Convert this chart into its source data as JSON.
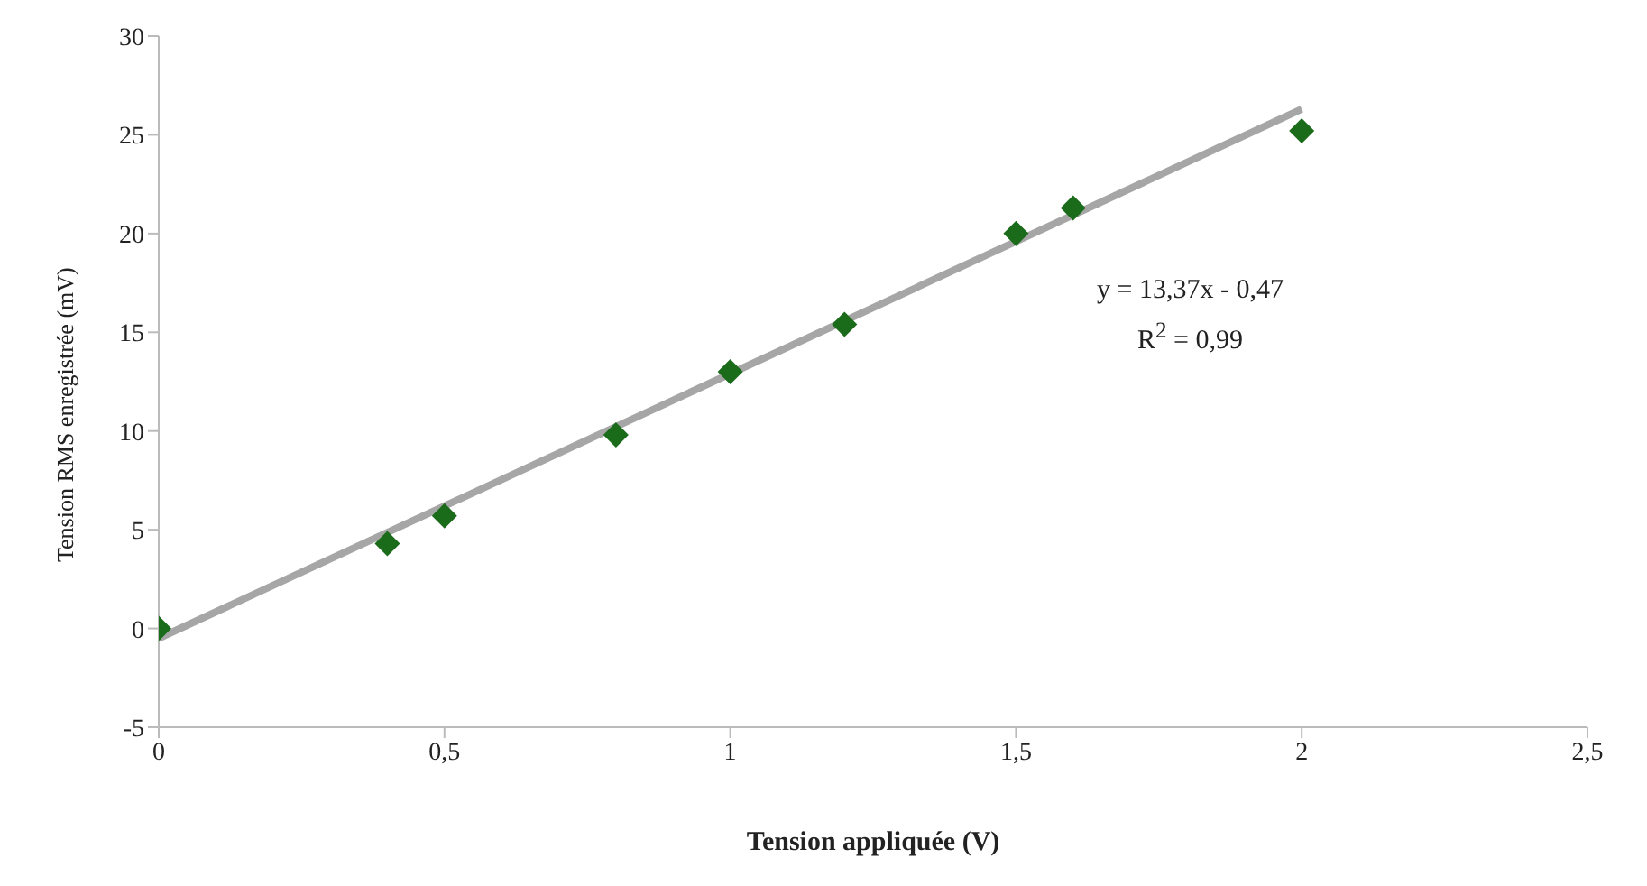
{
  "chart_data": {
    "type": "scatter",
    "xlabel": "Tension appliquée (V)",
    "ylabel": "Tension RMS enregistrée (mV)",
    "x": [
      0,
      0.4,
      0.5,
      0.8,
      1.0,
      1.2,
      1.5,
      1.6,
      2.0
    ],
    "series": [
      {
        "color": "#1a6b1a",
        "marker": "diamond",
        "values": [
          0,
          4.3,
          5.7,
          9.8,
          13,
          15.4,
          20,
          21.3,
          25.2
        ]
      },
      {
        "type": "line",
        "color": "#a6a6a6",
        "marker": "none",
        "x": [
          0,
          2
        ],
        "values": [
          -0.5,
          26.3
        ]
      }
    ],
    "xlim": [
      0,
      2.5
    ],
    "xticks": [
      0,
      {
        "value": 0.5,
        "label": "0,5"
      },
      1,
      {
        "value": 1.5,
        "label": "1,5"
      },
      2,
      {
        "value": 2.5,
        "label": "2,5"
      }
    ],
    "ylim": [
      -5,
      30
    ],
    "yticks": [
      -5,
      0,
      5,
      10,
      15,
      20,
      25,
      30
    ],
    "grid": false,
    "legend": false,
    "annotations": [
      "y = 13,37x - 0,47",
      "R$^{2}$ = 0,99"
    ]
  }
}
